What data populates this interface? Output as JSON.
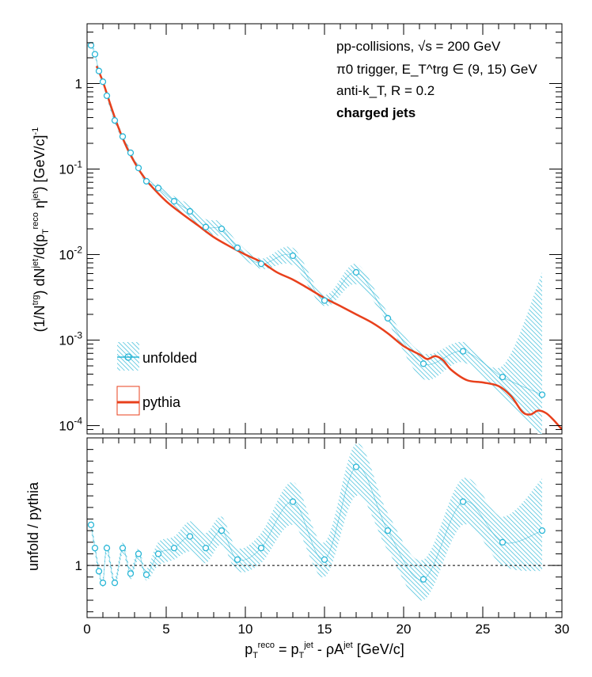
{
  "chart_data": [
    {
      "type": "line",
      "panel": "top",
      "ylabel": "(1/N^trg) dN^jet/d(p_T^reco η^jet) [GeV/c]^-1",
      "xlim": [
        0,
        30
      ],
      "ylim": [
        8e-05,
        5
      ],
      "yscale": "log",
      "ytick_labels": [
        "10^-4",
        "10^-3",
        "10^-2",
        "10^-1",
        "1"
      ],
      "annotations": [
        "pp-collisions, √s = 200 GeV",
        "π0 trigger, E_T^trg ∈ (9, 15) GeV",
        "anti-k_T, R = 0.2",
        "charged jets"
      ],
      "legend_position": "lower-left",
      "series": [
        {
          "name": "unfolded",
          "color": "#29b6d6",
          "x": [
            0.25,
            0.5,
            0.75,
            1.0,
            1.25,
            1.75,
            2.25,
            2.75,
            3.25,
            3.75,
            4.5,
            5.5,
            6.5,
            7.5,
            8.5,
            9.5,
            11.0,
            13.0,
            15.0,
            17.0,
            19.0,
            21.25,
            23.75,
            26.25,
            28.75
          ],
          "y": [
            2.8,
            2.2,
            1.4,
            1.05,
            0.72,
            0.37,
            0.24,
            0.155,
            0.103,
            0.072,
            0.06,
            0.042,
            0.032,
            0.021,
            0.02,
            0.012,
            0.0078,
            0.0097,
            0.0029,
            0.0062,
            0.0018,
            0.00053,
            0.00074,
            0.00037,
            0.00023
          ],
          "band_low": [
            2.6,
            2.05,
            1.3,
            0.98,
            0.67,
            0.34,
            0.22,
            0.145,
            0.096,
            0.066,
            0.052,
            0.036,
            0.026,
            0.018,
            0.016,
            0.0105,
            0.0068,
            0.0075,
            0.0025,
            0.0045,
            0.0016,
            0.00035,
            0.00055,
            0.00022,
            7e-05
          ],
          "band_high": [
            3.0,
            2.4,
            1.5,
            1.12,
            0.78,
            0.4,
            0.26,
            0.165,
            0.11,
            0.078,
            0.066,
            0.048,
            0.038,
            0.026,
            0.024,
            0.014,
            0.009,
            0.012,
            0.0034,
            0.0078,
            0.0021,
            0.0007,
            0.00095,
            0.0005,
            0.0062
          ]
        },
        {
          "name": "pythia",
          "color": "#e8401c",
          "x": [
            0.6,
            1.0,
            1.5,
            2.0,
            2.5,
            3.0,
            3.5,
            4.0,
            5.0,
            6.0,
            7.0,
            8.0,
            9.0,
            10.0,
            11.0,
            12.0,
            13.0,
            14.0,
            15.0,
            16.0,
            17.0,
            18.0,
            19.0,
            20.0,
            21.0,
            21.5,
            22.0,
            22.5,
            23.0,
            24.0,
            25.0,
            26.0,
            26.8,
            27.5,
            28.0,
            28.5,
            29.0,
            29.5,
            30.0
          ],
          "y": [
            1.6,
            1.05,
            0.55,
            0.3,
            0.18,
            0.12,
            0.085,
            0.065,
            0.042,
            0.03,
            0.022,
            0.016,
            0.0125,
            0.01,
            0.0082,
            0.0062,
            0.0051,
            0.004,
            0.0031,
            0.0025,
            0.002,
            0.0016,
            0.0012,
            0.00085,
            0.00068,
            0.0006,
            0.00065,
            0.00058,
            0.00045,
            0.00034,
            0.00032,
            0.00029,
            0.00022,
            0.000145,
            0.000135,
            0.00015,
            0.00014,
            0.000115,
            9e-05
          ]
        }
      ]
    },
    {
      "type": "line",
      "panel": "bottom",
      "xlabel": "p_T^reco = p_T^jet - ρA^jet [GeV/c]",
      "ylabel": "unfold / pythia",
      "xlim": [
        0,
        30
      ],
      "ylim": [
        0.55,
        2.1
      ],
      "x_tick_labels": [
        "0",
        "5",
        "10",
        "15",
        "20",
        "25",
        "30"
      ],
      "y_tick_labels": [
        "1"
      ],
      "reference_line": 1,
      "series": [
        {
          "name": "unfold / pythia",
          "color": "#29b6d6",
          "x": [
            0.25,
            0.5,
            0.75,
            1.0,
            1.25,
            1.75,
            2.25,
            2.75,
            3.25,
            3.75,
            4.5,
            5.5,
            6.5,
            7.5,
            8.5,
            9.5,
            11.0,
            13.0,
            15.0,
            17.0,
            19.0,
            21.25,
            23.75,
            26.25,
            28.75
          ],
          "y": [
            1.35,
            1.15,
            0.95,
            0.85,
            1.15,
            0.85,
            1.15,
            0.93,
            1.1,
            0.92,
            1.1,
            1.15,
            1.25,
            1.15,
            1.3,
            1.05,
            1.15,
            1.55,
            1.05,
            1.85,
            1.3,
            0.88,
            1.55,
            1.2,
            1.3
          ],
          "band_low": [
            1.3,
            1.1,
            0.91,
            0.8,
            1.1,
            0.8,
            1.1,
            0.88,
            1.05,
            0.87,
            1.0,
            1.05,
            1.12,
            1.02,
            1.18,
            0.95,
            1.02,
            1.35,
            0.9,
            1.6,
            1.13,
            0.7,
            1.35,
            1.0,
            0.95
          ],
          "band_high": [
            1.4,
            1.2,
            0.99,
            0.9,
            1.2,
            0.9,
            1.2,
            0.98,
            1.15,
            0.97,
            1.2,
            1.25,
            1.38,
            1.28,
            1.42,
            1.15,
            1.28,
            1.72,
            1.2,
            2.05,
            1.45,
            1.05,
            1.75,
            1.42,
            1.75
          ]
        }
      ]
    }
  ]
}
